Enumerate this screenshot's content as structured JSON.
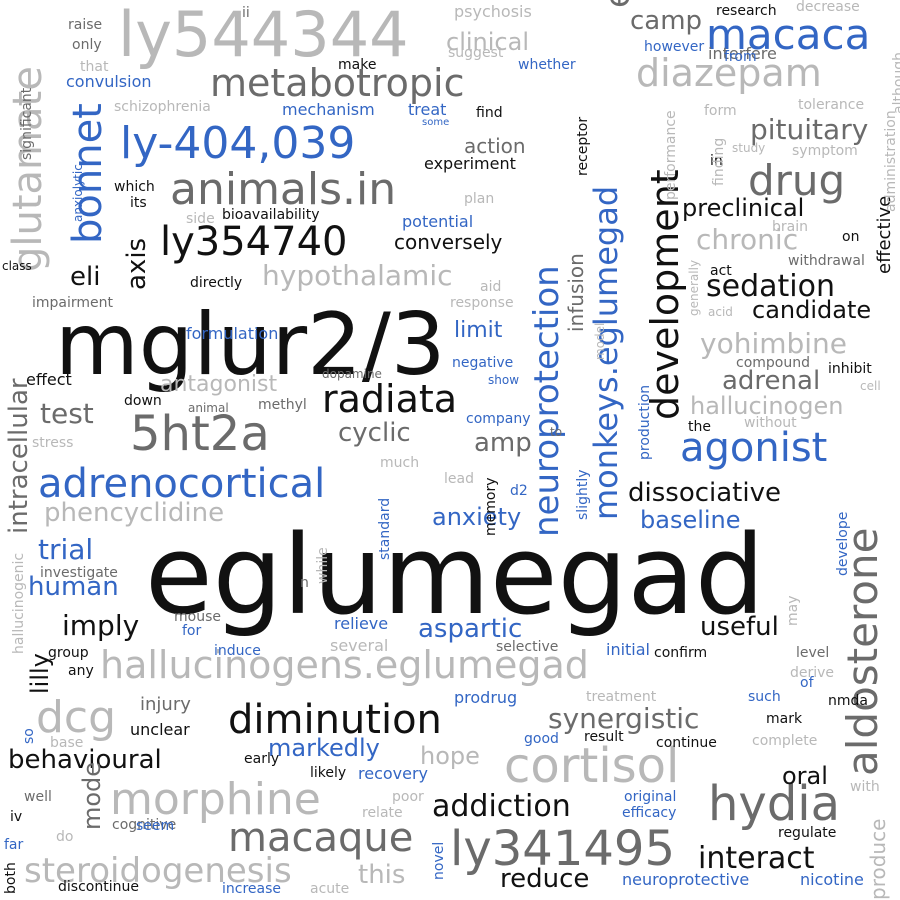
{
  "colors": {
    "black": "#111111",
    "dark": "#6b6b6b",
    "light": "#b8b8b8",
    "blue": "#3366c4"
  },
  "words": [
    {
      "t": "eglumegad",
      "c": "black"
    },
    {
      "t": "mglur2/3",
      "c": "black"
    },
    {
      "t": "ly544344",
      "c": "light"
    },
    {
      "t": "eglumegad",
      "c": "dark"
    },
    {
      "t": "glutamate",
      "c": "light"
    },
    {
      "t": "macaca",
      "c": "blue"
    },
    {
      "t": "metabotropic",
      "c": "dark"
    },
    {
      "t": "diazepam",
      "c": "light"
    },
    {
      "t": "ly-404,039",
      "c": "blue"
    },
    {
      "t": "animals.in",
      "c": "dark"
    },
    {
      "t": "bonnet",
      "c": "blue"
    },
    {
      "t": "drug",
      "c": "dark"
    },
    {
      "t": "development",
      "c": "black"
    },
    {
      "t": "ly354740",
      "c": "black"
    },
    {
      "t": "neuroprotection",
      "c": "blue"
    },
    {
      "t": "monkeys.eglumegad",
      "c": "blue"
    },
    {
      "t": "pituitary",
      "c": "dark"
    },
    {
      "t": "chronic",
      "c": "light"
    },
    {
      "t": "hypothalamic",
      "c": "light"
    },
    {
      "t": "sedation",
      "c": "black"
    },
    {
      "t": "radiata",
      "c": "black"
    },
    {
      "t": "5ht2a",
      "c": "dark"
    },
    {
      "t": "agonist",
      "c": "blue"
    },
    {
      "t": "adrenocortical",
      "c": "blue"
    },
    {
      "t": "aldosterone",
      "c": "dark"
    },
    {
      "t": "cortisol",
      "c": "light"
    },
    {
      "t": "hallucinogens.eglumegad",
      "c": "light"
    },
    {
      "t": "diminution",
      "c": "black"
    },
    {
      "t": "dcg",
      "c": "light"
    },
    {
      "t": "morphine",
      "c": "light"
    },
    {
      "t": "hydia",
      "c": "dark"
    },
    {
      "t": "macaque",
      "c": "dark"
    },
    {
      "t": "ly341495",
      "c": "dark"
    },
    {
      "t": "steroidogenesis",
      "c": "light"
    },
    {
      "t": "interact",
      "c": "black"
    },
    {
      "t": "addiction",
      "c": "black"
    },
    {
      "t": "synergistic",
      "c": "dark"
    },
    {
      "t": "behavioural",
      "c": "black"
    },
    {
      "t": "dissociative",
      "c": "black"
    },
    {
      "t": "phencyclidine",
      "c": "light"
    },
    {
      "t": "intracellular",
      "c": "dark"
    },
    {
      "t": "aspartic",
      "c": "blue"
    },
    {
      "t": "useful",
      "c": "black"
    },
    {
      "t": "cyclic",
      "c": "dark"
    },
    {
      "t": "adrenal",
      "c": "dark"
    },
    {
      "t": "yohimbine",
      "c": "light"
    },
    {
      "t": "hallucinogen",
      "c": "light"
    },
    {
      "t": "antagonist",
      "c": "light"
    },
    {
      "t": "test",
      "c": "dark"
    },
    {
      "t": "anxiety",
      "c": "blue"
    },
    {
      "t": "baseline",
      "c": "blue"
    },
    {
      "t": "markedly",
      "c": "blue"
    },
    {
      "t": "trial",
      "c": "blue"
    },
    {
      "t": "human",
      "c": "blue"
    },
    {
      "t": "imply",
      "c": "black"
    },
    {
      "t": "reduce",
      "c": "black"
    },
    {
      "t": "candidate",
      "c": "black"
    },
    {
      "t": "preclinical",
      "c": "black"
    },
    {
      "t": "conversely",
      "c": "black"
    },
    {
      "t": "clinical",
      "c": "light"
    },
    {
      "t": "camp",
      "c": "dark"
    },
    {
      "t": "axis",
      "c": "black"
    },
    {
      "t": "eli",
      "c": "black"
    },
    {
      "t": "amp",
      "c": "dark"
    },
    {
      "t": "lilly",
      "c": "black"
    },
    {
      "t": "mode",
      "c": "dark"
    },
    {
      "t": "this",
      "c": "light"
    },
    {
      "t": "oral",
      "c": "black"
    },
    {
      "t": "hope",
      "c": "light"
    },
    {
      "t": "infusion",
      "c": "dark"
    },
    {
      "t": "limit",
      "c": "blue"
    },
    {
      "t": "action",
      "c": "dark"
    },
    {
      "t": "recovery",
      "c": "blue"
    },
    {
      "t": "neuroprotective",
      "c": "blue"
    },
    {
      "t": "nicotine",
      "c": "blue"
    },
    {
      "t": "produce",
      "c": "light"
    },
    {
      "t": "effective",
      "c": "black"
    },
    {
      "t": "injury",
      "c": "dark"
    },
    {
      "t": "convulsion",
      "c": "blue"
    },
    {
      "t": "mechanism",
      "c": "blue"
    },
    {
      "t": "treat",
      "c": "blue"
    },
    {
      "t": "formulation",
      "c": "blue"
    },
    {
      "t": "potential",
      "c": "blue"
    },
    {
      "t": "interfere",
      "c": "dark"
    },
    {
      "t": "research",
      "c": "black"
    },
    {
      "t": "psychosis",
      "c": "light"
    },
    {
      "t": "decrease",
      "c": "light"
    },
    {
      "t": "schizophrenia",
      "c": "light"
    },
    {
      "t": "significant",
      "c": "dark"
    },
    {
      "t": "tolerance",
      "c": "light"
    },
    {
      "t": "symptom",
      "c": "light"
    },
    {
      "t": "bioavailability",
      "c": "black"
    },
    {
      "t": "experiment",
      "c": "black"
    },
    {
      "t": "impairment",
      "c": "dark"
    },
    {
      "t": "directly",
      "c": "black"
    },
    {
      "t": "effect",
      "c": "black"
    },
    {
      "t": "down",
      "c": "black"
    },
    {
      "t": "animal",
      "c": "dark"
    },
    {
      "t": "methyl",
      "c": "dark"
    },
    {
      "t": "dopamine",
      "c": "dark"
    },
    {
      "t": "compound",
      "c": "dark"
    },
    {
      "t": "inhibit",
      "c": "black"
    },
    {
      "t": "cell",
      "c": "light"
    },
    {
      "t": "stress",
      "c": "light"
    },
    {
      "t": "the",
      "c": "black"
    },
    {
      "t": "without",
      "c": "light"
    },
    {
      "t": "d2",
      "c": "blue"
    },
    {
      "t": "memory",
      "c": "black"
    },
    {
      "t": "investigate",
      "c": "dark"
    },
    {
      "t": "hallucinogenic",
      "c": "light"
    },
    {
      "t": "group",
      "c": "black"
    },
    {
      "t": "relieve",
      "c": "blue"
    },
    {
      "t": "several",
      "c": "light"
    },
    {
      "t": "selective",
      "c": "dark"
    },
    {
      "t": "initial",
      "c": "blue"
    },
    {
      "t": "confirm",
      "c": "black"
    },
    {
      "t": "induce",
      "c": "blue"
    },
    {
      "t": "prodrug",
      "c": "blue"
    },
    {
      "t": "treatment",
      "c": "light"
    },
    {
      "t": "such",
      "c": "blue"
    },
    {
      "t": "mark",
      "c": "black"
    },
    {
      "t": "nmda",
      "c": "black"
    },
    {
      "t": "unclear",
      "c": "black"
    },
    {
      "t": "early",
      "c": "black"
    },
    {
      "t": "likely",
      "c": "black"
    },
    {
      "t": "result",
      "c": "black"
    },
    {
      "t": "continue",
      "c": "black"
    },
    {
      "t": "complete",
      "c": "light"
    },
    {
      "t": "cognitive",
      "c": "dark"
    },
    {
      "t": "seem",
      "c": "blue"
    },
    {
      "t": "efficacy",
      "c": "blue"
    },
    {
      "t": "original",
      "c": "blue"
    },
    {
      "t": "regulate",
      "c": "black"
    },
    {
      "t": "discontinue",
      "c": "black"
    },
    {
      "t": "increase",
      "c": "blue"
    },
    {
      "t": "acute",
      "c": "light"
    },
    {
      "t": "novel",
      "c": "blue"
    },
    {
      "t": "both",
      "c": "black"
    },
    {
      "t": "far",
      "c": "blue"
    },
    {
      "t": "iv",
      "c": "black"
    },
    {
      "t": "well",
      "c": "dark"
    },
    {
      "t": "do",
      "c": "light"
    },
    {
      "t": "so",
      "c": "blue"
    },
    {
      "t": "base",
      "c": "light"
    },
    {
      "t": "good",
      "c": "blue"
    },
    {
      "t": "poor",
      "c": "light"
    },
    {
      "t": "relate",
      "c": "light"
    },
    {
      "t": "raise",
      "c": "dark"
    },
    {
      "t": "only",
      "c": "dark"
    },
    {
      "t": "that",
      "c": "light"
    },
    {
      "t": "ii",
      "c": "dark"
    },
    {
      "t": "make",
      "c": "black"
    },
    {
      "t": "suggest",
      "c": "light"
    },
    {
      "t": "whether",
      "c": "blue"
    },
    {
      "t": "however",
      "c": "blue"
    },
    {
      "t": "from",
      "c": "blue"
    },
    {
      "t": "find",
      "c": "black"
    },
    {
      "t": "some",
      "c": "blue"
    },
    {
      "t": "receptor",
      "c": "black"
    },
    {
      "t": "which",
      "c": "black"
    },
    {
      "t": "its",
      "c": "black"
    },
    {
      "t": "side",
      "c": "light"
    },
    {
      "t": "plan",
      "c": "light"
    },
    {
      "t": "class",
      "c": "black"
    },
    {
      "t": "aid",
      "c": "light"
    },
    {
      "t": "response",
      "c": "light"
    },
    {
      "t": "negative",
      "c": "blue"
    },
    {
      "t": "show",
      "c": "blue"
    },
    {
      "t": "company",
      "c": "blue"
    },
    {
      "t": "to",
      "c": "dark"
    },
    {
      "t": "much",
      "c": "light"
    },
    {
      "t": "lead",
      "c": "light"
    },
    {
      "t": "slightly",
      "c": "blue"
    },
    {
      "t": "while",
      "c": "light"
    },
    {
      "t": "standard",
      "c": "blue"
    },
    {
      "t": "n",
      "c": "dark"
    },
    {
      "t": "mouse",
      "c": "dark"
    },
    {
      "t": "for",
      "c": "blue"
    },
    {
      "t": "any",
      "c": "black"
    },
    {
      "t": "level",
      "c": "dark"
    },
    {
      "t": "derive",
      "c": "light"
    },
    {
      "t": "of",
      "c": "blue"
    },
    {
      "t": "may",
      "c": "light"
    },
    {
      "t": "develope",
      "c": "blue"
    },
    {
      "t": "with",
      "c": "light"
    },
    {
      "t": "administration",
      "c": "light"
    },
    {
      "t": "although",
      "c": "light"
    },
    {
      "t": "form",
      "c": "light"
    },
    {
      "t": "in",
      "c": "black"
    },
    {
      "t": "study",
      "c": "light"
    },
    {
      "t": "finding",
      "c": "light"
    },
    {
      "t": "brain",
      "c": "light"
    },
    {
      "t": "withdrawal",
      "c": "dark"
    },
    {
      "t": "act",
      "c": "black"
    },
    {
      "t": "acid",
      "c": "light"
    },
    {
      "t": "on",
      "c": "black"
    },
    {
      "t": "performance",
      "c": "light"
    },
    {
      "t": "generally",
      "c": "light"
    },
    {
      "t": "model",
      "c": "light"
    },
    {
      "t": "production",
      "c": "blue"
    },
    {
      "t": "anxiolytic",
      "c": "blue"
    }
  ]
}
